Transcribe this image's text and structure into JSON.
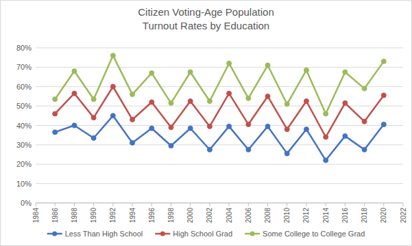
{
  "chart_data": {
    "type": "line",
    "title": [
      "Citizen Voting-Age Population",
      "Turnout Rates by Education"
    ],
    "x": [
      1986,
      1988,
      1990,
      1992,
      1994,
      1996,
      1998,
      2000,
      2002,
      2004,
      2006,
      2008,
      2010,
      2012,
      2014,
      2016,
      2018,
      2020
    ],
    "series": [
      {
        "name": "Less Than High School",
        "color": "#4472c4",
        "marker": "circle",
        "values": [
          36.5,
          40,
          33.5,
          45,
          31,
          38.5,
          29.5,
          38.5,
          27.5,
          39.5,
          27.5,
          39.5,
          25.5,
          38,
          22,
          34.5,
          27.5,
          40.5
        ]
      },
      {
        "name": "High School Grad",
        "color": "#c0504d",
        "marker": "circle",
        "values": [
          46,
          56.5,
          44,
          60,
          43,
          52,
          39,
          52.5,
          39.5,
          56.5,
          40.5,
          55,
          38,
          52.5,
          34,
          51.5,
          42,
          55.5
        ]
      },
      {
        "name": "Some College to College Grad",
        "color": "#9bbb59",
        "marker": "circle",
        "values": [
          53.5,
          68,
          53.5,
          76,
          56,
          67,
          51.5,
          67.5,
          52.5,
          72,
          54,
          71,
          51,
          68.5,
          46,
          67.5,
          59,
          73
        ]
      }
    ],
    "xlim": [
      1984,
      2022
    ],
    "xticks": [
      1984,
      1986,
      1988,
      1990,
      1992,
      1994,
      1996,
      1998,
      2000,
      2002,
      2004,
      2006,
      2008,
      2010,
      2012,
      2014,
      2016,
      2018,
      2020,
      2022
    ],
    "ylim": [
      0,
      80
    ],
    "yticks": [
      {
        "value": 0,
        "label": "0%"
      },
      {
        "value": 10,
        "label": "10%"
      },
      {
        "value": 20,
        "label": "20%"
      },
      {
        "value": 30,
        "label": "30%"
      },
      {
        "value": 40,
        "label": "40%"
      },
      {
        "value": 50,
        "label": "50%"
      },
      {
        "value": 60,
        "label": "60%"
      },
      {
        "value": 70,
        "label": "70%"
      },
      {
        "value": 80,
        "label": "80%"
      }
    ],
    "grid": true,
    "legend": "bottom"
  }
}
